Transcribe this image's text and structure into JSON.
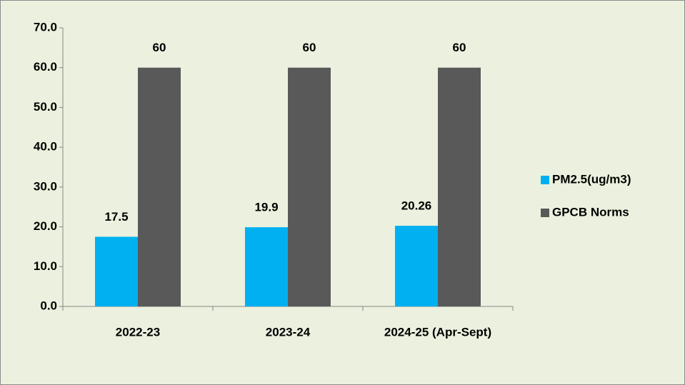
{
  "chart_data": {
    "type": "bar",
    "categories": [
      "2022-23",
      "2023-24",
      "2024-25 (Apr-Sept)"
    ],
    "series": [
      {
        "name": "PM2.5(ug/m3)",
        "color": "#00b0f0",
        "values": [
          17.5,
          19.9,
          20.26
        ]
      },
      {
        "name": "GPCB Norms",
        "color": "#595959",
        "values": [
          60,
          60,
          60
        ]
      }
    ],
    "ylim": [
      0,
      70
    ],
    "yticks": [
      {
        "value": 0,
        "label": "0.0"
      },
      {
        "value": 10,
        "label": "10.0"
      },
      {
        "value": 20,
        "label": "20.0"
      },
      {
        "value": 30,
        "label": "30.0"
      },
      {
        "value": 40,
        "label": "40.0"
      },
      {
        "value": 50,
        "label": "50.0"
      },
      {
        "value": 60,
        "label": "60.0"
      },
      {
        "value": 70,
        "label": "70.0"
      }
    ],
    "legend": "right"
  }
}
